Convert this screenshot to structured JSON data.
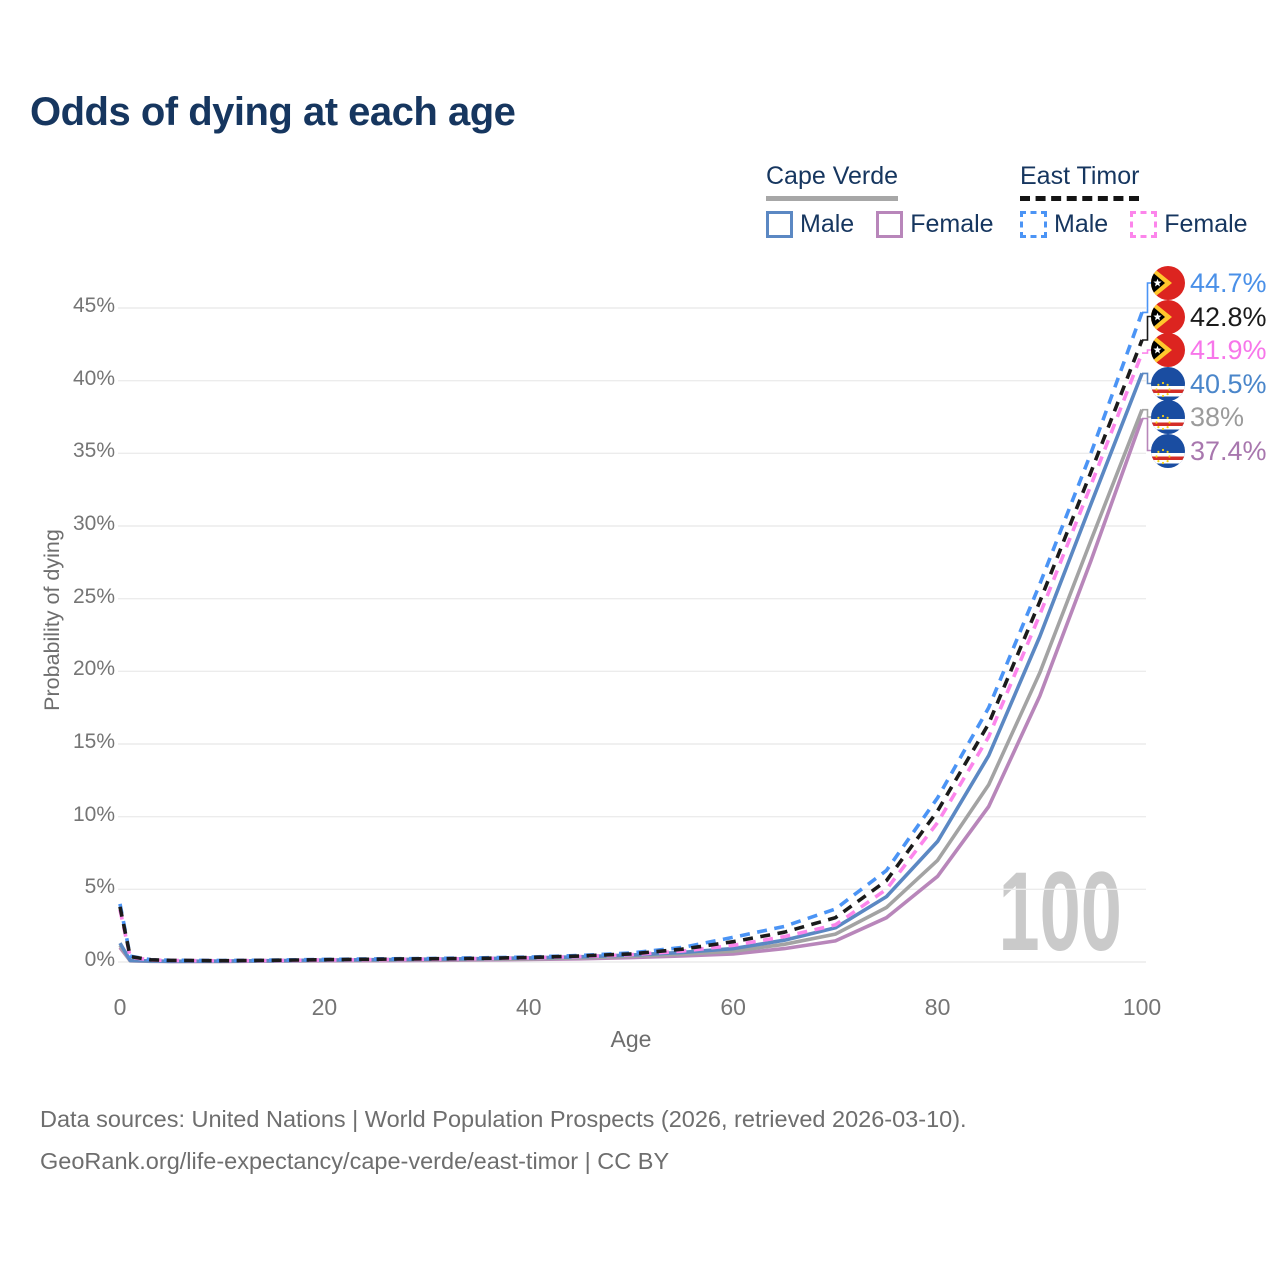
{
  "title": "Odds of dying at each age",
  "legend": {
    "groups": [
      {
        "name": "Cape Verde",
        "line_style": "solid",
        "underline_color": "#a7a7a7",
        "items": [
          {
            "label": "Male",
            "color": "#5b88c3",
            "dashed": false
          },
          {
            "label": "Female",
            "color": "#b886ba",
            "dashed": false
          }
        ]
      },
      {
        "name": "East Timor",
        "line_style": "dashed",
        "underline_color": "#141414",
        "items": [
          {
            "label": "Male",
            "color": "#4b94f5",
            "dashed": true
          },
          {
            "label": "Female",
            "color": "#fc85eb",
            "dashed": true
          }
        ]
      }
    ]
  },
  "chart_data": {
    "type": "line",
    "title": "Odds of dying at each age",
    "xlabel": "Age",
    "ylabel": "Probability of dying",
    "xlim": [
      0,
      100
    ],
    "ylim": [
      0,
      45
    ],
    "xticks": [
      0,
      20,
      40,
      60,
      80,
      100
    ],
    "yticks": [
      0,
      5,
      10,
      15,
      20,
      25,
      30,
      35,
      40,
      45
    ],
    "ytick_suffix": "%",
    "grid": "horizontal",
    "legend_position": "top-right",
    "watermark": "100",
    "ages": [
      0,
      1,
      3,
      5,
      10,
      15,
      20,
      25,
      30,
      35,
      40,
      45,
      50,
      55,
      60,
      65,
      70,
      75,
      80,
      85,
      90,
      95,
      100
    ],
    "series": [
      {
        "id": "east-timor-male",
        "name": "East Timor Male",
        "country": "east-timor",
        "sex": "male",
        "color": "#4b94f5",
        "dashed": true,
        "end_label": "44.7%",
        "end_value": 44.7,
        "label_color": "#4a90e8",
        "values": [
          4.0,
          0.4,
          0.16,
          0.12,
          0.1,
          0.13,
          0.18,
          0.21,
          0.24,
          0.28,
          0.34,
          0.45,
          0.62,
          1.0,
          1.7,
          2.45,
          3.65,
          6.3,
          11.3,
          17.5,
          26.0,
          35.0,
          44.7
        ]
      },
      {
        "id": "east-timor-both",
        "name": "East Timor Both sexes",
        "country": "east-timor",
        "sex": "both",
        "color": "#1b1b1b",
        "dashed": true,
        "end_label": "42.8%",
        "end_value": 42.8,
        "label_color": "#1b1b1b",
        "values": [
          3.8,
          0.37,
          0.15,
          0.11,
          0.09,
          0.12,
          0.16,
          0.19,
          0.22,
          0.25,
          0.31,
          0.41,
          0.56,
          0.88,
          1.4,
          2.05,
          3.05,
          5.6,
          10.4,
          16.4,
          24.8,
          33.7,
          42.8
        ]
      },
      {
        "id": "east-timor-female",
        "name": "East Timor Female",
        "country": "east-timor",
        "sex": "female",
        "color": "#fc85eb",
        "dashed": true,
        "end_label": "41.9%",
        "end_value": 41.9,
        "label_color": "#f776ea",
        "values": [
          3.6,
          0.34,
          0.14,
          0.1,
          0.08,
          0.1,
          0.14,
          0.16,
          0.19,
          0.23,
          0.28,
          0.37,
          0.5,
          0.75,
          1.15,
          1.75,
          2.55,
          5.0,
          9.6,
          15.5,
          23.9,
          32.8,
          41.9
        ]
      },
      {
        "id": "cape-verde-male",
        "name": "Cape Verde Male",
        "country": "cape-verde",
        "sex": "male",
        "color": "#5b88c3",
        "dashed": false,
        "end_label": "40.5%",
        "end_value": 40.5,
        "label_color": "#4a86ca",
        "values": [
          1.3,
          0.1,
          0.07,
          0.05,
          0.06,
          0.09,
          0.13,
          0.16,
          0.19,
          0.23,
          0.28,
          0.36,
          0.48,
          0.66,
          0.92,
          1.5,
          2.35,
          4.5,
          8.3,
          14.2,
          22.4,
          31.5,
          40.5
        ]
      },
      {
        "id": "cape-verde-both",
        "name": "Cape Verde Both sexes",
        "country": "cape-verde",
        "sex": "both",
        "color": "#a3a3a3",
        "dashed": false,
        "end_label": "38%",
        "end_value": 38,
        "label_color": "#9b9b9b",
        "values": [
          1.15,
          0.09,
          0.06,
          0.05,
          0.05,
          0.07,
          0.1,
          0.12,
          0.15,
          0.18,
          0.22,
          0.29,
          0.39,
          0.54,
          0.74,
          1.22,
          1.92,
          3.75,
          7.0,
          12.2,
          19.9,
          29.0,
          38.0
        ]
      },
      {
        "id": "cape-verde-female",
        "name": "Cape Verde Female",
        "country": "cape-verde",
        "sex": "female",
        "color": "#b886ba",
        "dashed": false,
        "end_label": "37.4%",
        "end_value": 37.4,
        "label_color": "#a877ae",
        "values": [
          1.0,
          0.08,
          0.05,
          0.04,
          0.04,
          0.06,
          0.08,
          0.09,
          0.11,
          0.14,
          0.17,
          0.22,
          0.3,
          0.42,
          0.56,
          0.92,
          1.45,
          3.05,
          5.9,
          10.7,
          18.3,
          27.6,
          37.4
        ]
      }
    ]
  },
  "footer": {
    "line1": "Data sources: United Nations | World Population Prospects (2026, retrieved 2026-03-10).",
    "line2": "GeoRank.org/life-expectancy/cape-verde/east-timor | CC BY"
  }
}
